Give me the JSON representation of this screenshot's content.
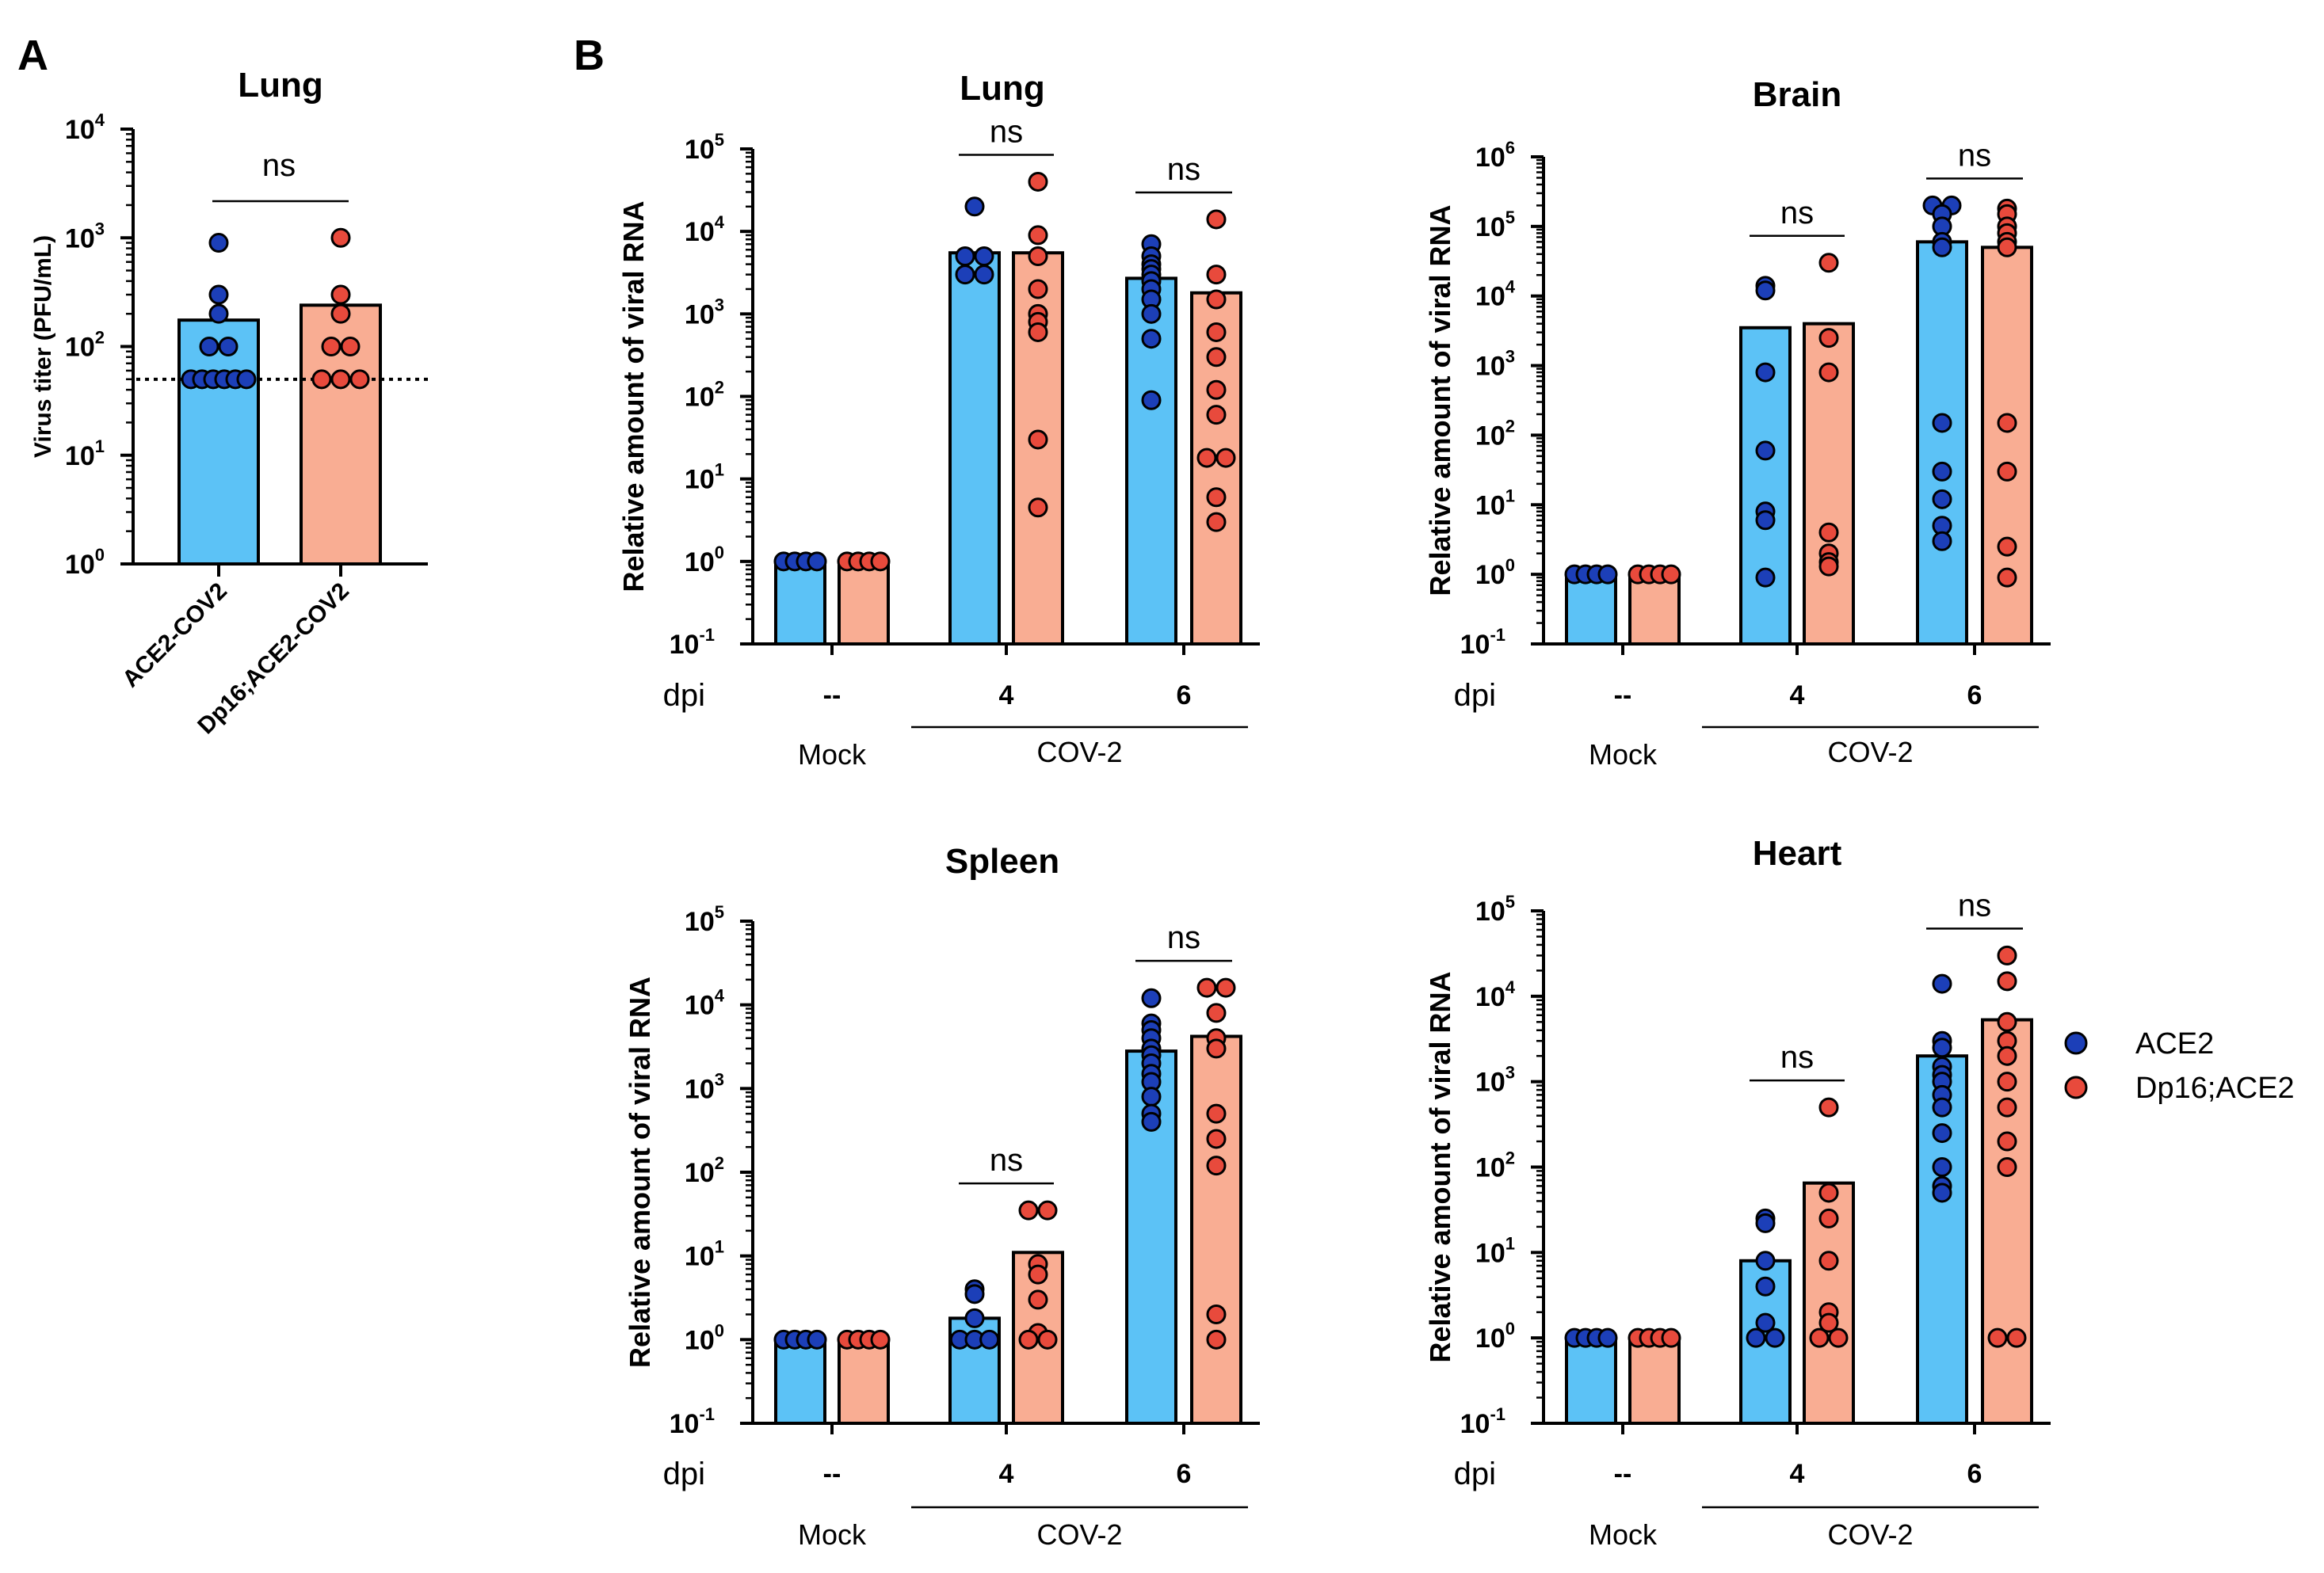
{
  "panel_labels": {
    "a": "A",
    "b": "B"
  },
  "colors": {
    "ace2_bar": "#5cc2f6",
    "dp16_bar": "#f9ad93",
    "ace2_dot": "#1c3fb8",
    "dp16_dot": "#e84a3c"
  },
  "legend": {
    "ace2": "ACE2",
    "dp16": "Dp16;ACE2"
  },
  "chart_data": [
    {
      "id": "A",
      "type": "bar",
      "title": "Lung",
      "ylabel": "Virus titer (PFU/mL)",
      "yscale": "log",
      "ylim": [
        1,
        10000
      ],
      "ytick_labels": [
        {
          "base": "10",
          "exp": "0"
        },
        {
          "base": "10",
          "exp": "1"
        },
        {
          "base": "10",
          "exp": "2"
        },
        {
          "base": "10",
          "exp": "3"
        },
        {
          "base": "10",
          "exp": "4"
        }
      ],
      "categories": [
        "ACE2-COV2",
        "Dp16;ACE2-COV2"
      ],
      "values": [
        175,
        240
      ],
      "points": [
        [
          900,
          300,
          200,
          100,
          100,
          50,
          50,
          50,
          50,
          50,
          50
        ],
        [
          1000,
          300,
          200,
          100,
          100,
          50,
          50,
          50
        ]
      ],
      "detection_limit": 50,
      "annotations": [
        {
          "text": "ns",
          "between": [
            0,
            1
          ]
        }
      ]
    },
    {
      "id": "B-Lung",
      "type": "bar",
      "title": "Lung",
      "ylabel": "Relative amount of viral RNA",
      "yscale": "log",
      "ylim": [
        0.1,
        100000
      ],
      "ytick_labels": [
        {
          "base": "10",
          "exp": "-1"
        },
        {
          "base": "10",
          "exp": "0"
        },
        {
          "base": "10",
          "exp": "1"
        },
        {
          "base": "10",
          "exp": "2"
        },
        {
          "base": "10",
          "exp": "3"
        },
        {
          "base": "10",
          "exp": "4"
        },
        {
          "base": "10",
          "exp": "5"
        }
      ],
      "xprefix": "dpi",
      "groups": [
        {
          "dpi": "--",
          "label": "Mock"
        },
        {
          "dpi": "4",
          "label": ""
        },
        {
          "dpi": "6",
          "label": ""
        }
      ],
      "infected_label": "COV-2",
      "series": [
        {
          "name": "ACE2",
          "values": [
            1,
            5500,
            2700
          ],
          "points": [
            [
              1,
              1,
              1,
              1
            ],
            [
              20000,
              5000,
              5000,
              3000,
              3000
            ],
            [
              7000,
              5000,
              4000,
              3500,
              3000,
              2500,
              2000,
              1500,
              1000,
              500,
              90
            ]
          ]
        },
        {
          "name": "Dp16;ACE2",
          "values": [
            1,
            5500,
            1800
          ],
          "points": [
            [
              1,
              1,
              1,
              1
            ],
            [
              40000,
              9000,
              5000,
              2000,
              1000,
              800,
              600,
              30,
              4.5
            ],
            [
              14000,
              3000,
              1500,
              600,
              300,
              120,
              60,
              18,
              18,
              6,
              3
            ]
          ]
        }
      ],
      "annotations": [
        {
          "text": "ns",
          "group": 1
        },
        {
          "text": "ns",
          "group": 2
        }
      ]
    },
    {
      "id": "B-Brain",
      "type": "bar",
      "title": "Brain",
      "ylabel": "Relative amount of viral RNA",
      "yscale": "log",
      "ylim": [
        0.1,
        1000000
      ],
      "ytick_labels": [
        {
          "base": "10",
          "exp": "-1"
        },
        {
          "base": "10",
          "exp": "0"
        },
        {
          "base": "10",
          "exp": "1"
        },
        {
          "base": "10",
          "exp": "2"
        },
        {
          "base": "10",
          "exp": "3"
        },
        {
          "base": "10",
          "exp": "4"
        },
        {
          "base": "10",
          "exp": "5"
        },
        {
          "base": "10",
          "exp": "6"
        }
      ],
      "xprefix": "dpi",
      "groups": [
        {
          "dpi": "--",
          "label": "Mock"
        },
        {
          "dpi": "4",
          "label": ""
        },
        {
          "dpi": "6",
          "label": ""
        }
      ],
      "infected_label": "COV-2",
      "series": [
        {
          "name": "ACE2",
          "values": [
            1,
            3500,
            60000
          ],
          "points": [
            [
              1,
              1,
              1,
              1
            ],
            [
              14000,
              12000,
              800,
              60,
              8,
              6,
              0.9
            ],
            [
              200000,
              200000,
              150000,
              100000,
              60000,
              50000,
              150,
              30,
              12,
              5,
              3
            ]
          ]
        },
        {
          "name": "Dp16;ACE2",
          "values": [
            1,
            4000,
            50000
          ],
          "points": [
            [
              1,
              1,
              1,
              1
            ],
            [
              30000,
              2500,
              800,
              4,
              2,
              1.5,
              1.3
            ],
            [
              180000,
              150000,
              100000,
              80000,
              60000,
              50000,
              150,
              30,
              2.5,
              0.9
            ]
          ]
        }
      ],
      "annotations": [
        {
          "text": "ns",
          "group": 1
        },
        {
          "text": "ns",
          "group": 2
        }
      ]
    },
    {
      "id": "B-Spleen",
      "type": "bar",
      "title": "Spleen",
      "ylabel": "Relative amount of viral RNA",
      "yscale": "log",
      "ylim": [
        0.1,
        100000
      ],
      "ytick_labels": [
        {
          "base": "10",
          "exp": "-1"
        },
        {
          "base": "10",
          "exp": "0"
        },
        {
          "base": "10",
          "exp": "1"
        },
        {
          "base": "10",
          "exp": "2"
        },
        {
          "base": "10",
          "exp": "3"
        },
        {
          "base": "10",
          "exp": "4"
        },
        {
          "base": "10",
          "exp": "5"
        }
      ],
      "xprefix": "dpi",
      "groups": [
        {
          "dpi": "--",
          "label": "Mock"
        },
        {
          "dpi": "4",
          "label": ""
        },
        {
          "dpi": "6",
          "label": ""
        }
      ],
      "infected_label": "COV-2",
      "series": [
        {
          "name": "ACE2",
          "values": [
            1,
            1.8,
            2800
          ],
          "points": [
            [
              1,
              1,
              1,
              1
            ],
            [
              4,
              3.5,
              1.8,
              1,
              1,
              1
            ],
            [
              12000,
              6000,
              5000,
              4000,
              3000,
              2500,
              2000,
              1500,
              1200,
              800,
              500,
              400
            ]
          ]
        },
        {
          "name": "Dp16;ACE2",
          "values": [
            1,
            11,
            4200
          ],
          "points": [
            [
              1,
              1,
              1,
              1
            ],
            [
              35,
              35,
              8,
              6,
              3,
              1.2,
              1,
              1
            ],
            [
              16000,
              16000,
              8000,
              4000,
              3000,
              500,
              250,
              120,
              2,
              1
            ]
          ]
        }
      ],
      "annotations": [
        {
          "text": "ns",
          "group": 1
        },
        {
          "text": "ns",
          "group": 2
        }
      ]
    },
    {
      "id": "B-Heart",
      "type": "bar",
      "title": "Heart",
      "ylabel": "Relative amount of viral RNA",
      "yscale": "log",
      "ylim": [
        0.1,
        100000
      ],
      "ytick_labels": [
        {
          "base": "10",
          "exp": "-1"
        },
        {
          "base": "10",
          "exp": "0"
        },
        {
          "base": "10",
          "exp": "1"
        },
        {
          "base": "10",
          "exp": "2"
        },
        {
          "base": "10",
          "exp": "3"
        },
        {
          "base": "10",
          "exp": "4"
        },
        {
          "base": "10",
          "exp": "5"
        }
      ],
      "xprefix": "dpi",
      "groups": [
        {
          "dpi": "--",
          "label": "Mock"
        },
        {
          "dpi": "4",
          "label": ""
        },
        {
          "dpi": "6",
          "label": ""
        }
      ],
      "infected_label": "COV-2",
      "series": [
        {
          "name": "ACE2",
          "values": [
            1,
            8,
            2000
          ],
          "points": [
            [
              1,
              1,
              1,
              1
            ],
            [
              25,
              22,
              8,
              4,
              1.5,
              1,
              1
            ],
            [
              14000,
              3000,
              2500,
              1500,
              1200,
              1000,
              700,
              500,
              250,
              100,
              60,
              50
            ]
          ]
        },
        {
          "name": "Dp16;ACE2",
          "values": [
            1,
            65,
            5300
          ],
          "points": [
            [
              1,
              1,
              1,
              1
            ],
            [
              500,
              50,
              25,
              8,
              2,
              1.5,
              1,
              1
            ],
            [
              30000,
              15000,
              5000,
              3000,
              2000,
              1000,
              500,
              200,
              100,
              1,
              1
            ]
          ]
        }
      ],
      "annotations": [
        {
          "text": "ns",
          "group": 1
        },
        {
          "text": "ns",
          "group": 2
        }
      ]
    }
  ]
}
